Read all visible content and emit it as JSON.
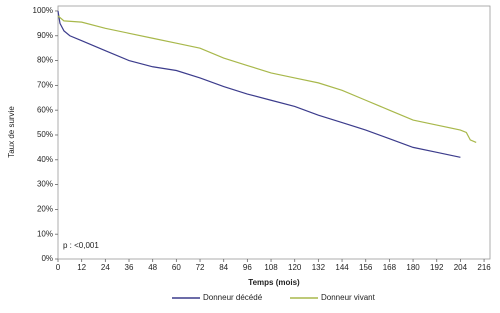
{
  "chart_data": {
    "type": "line",
    "x_label": "Temps (mois)",
    "y_label": "Taux de survie",
    "annotation": "p : <0,001",
    "xlim": [
      0,
      219
    ],
    "ylim": [
      0,
      102
    ],
    "xticks": [
      0,
      12,
      24,
      36,
      48,
      60,
      72,
      84,
      96,
      108,
      120,
      132,
      144,
      156,
      168,
      180,
      192,
      204,
      216
    ],
    "yticks": [
      {
        "value": 0,
        "label": "0%"
      },
      {
        "value": 10,
        "label": "10%"
      },
      {
        "value": 20,
        "label": "20%"
      },
      {
        "value": 30,
        "label": "30%"
      },
      {
        "value": 40,
        "label": "40%"
      },
      {
        "value": 50,
        "label": "50%"
      },
      {
        "value": 60,
        "label": "60%"
      },
      {
        "value": 70,
        "label": "70%"
      },
      {
        "value": 80,
        "label": "80%"
      },
      {
        "value": 90,
        "label": "90%"
      },
      {
        "value": 100,
        "label": "100%"
      }
    ],
    "series": [
      {
        "name": "Donneur décédé",
        "color": "#3c3c8c",
        "x": [
          0,
          1,
          3,
          6,
          12,
          24,
          36,
          48,
          60,
          72,
          84,
          96,
          108,
          120,
          132,
          144,
          156,
          168,
          180,
          192,
          204
        ],
        "values": [
          100,
          95,
          92,
          90,
          88,
          84,
          80,
          77.5,
          76,
          73,
          69.5,
          66.5,
          64,
          61.5,
          58,
          55,
          52,
          48.5,
          45,
          43,
          41
        ]
      },
      {
        "name": "Donneur vivant",
        "color": "#a8b84b",
        "x": [
          0,
          3,
          12,
          24,
          36,
          48,
          60,
          72,
          84,
          96,
          108,
          120,
          132,
          144,
          156,
          168,
          180,
          192,
          204,
          207,
          209,
          212
        ],
        "values": [
          98,
          96,
          95.5,
          93,
          91,
          89,
          87,
          85,
          81,
          78,
          75,
          73,
          71,
          68,
          64,
          60,
          56,
          54,
          52,
          51,
          48,
          47
        ]
      }
    ]
  }
}
